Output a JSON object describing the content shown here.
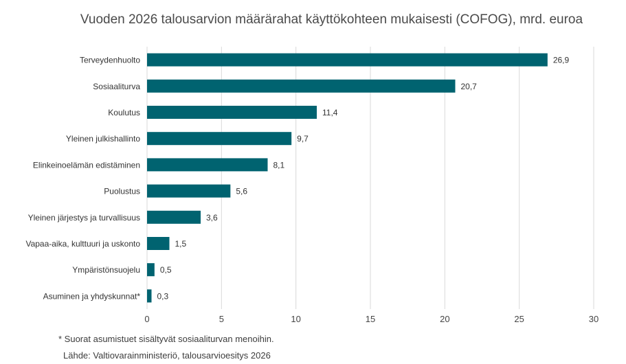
{
  "chart_data": {
    "type": "bar",
    "orientation": "horizontal",
    "title": "Vuoden 2026 talousarvion määrärahat käyttökohteen mukaisesti (COFOG), mrd. euroa",
    "categories": [
      "Terveydenhuolto",
      "Sosiaaliturva",
      "Koulutus",
      "Yleinen julkishallinto",
      "Elinkeinoelämän edistäminen",
      "Puolustus",
      "Yleinen järjestys ja turvallisuus",
      "Vapaa-aika, kulttuuri ja uskonto",
      "Ympäristönsuojelu",
      "Asuminen ja yhdyskunnat*"
    ],
    "values": [
      26.9,
      20.7,
      11.4,
      9.7,
      8.1,
      5.6,
      3.6,
      1.5,
      0.5,
      0.3
    ],
    "value_labels": [
      "26,9",
      "20,7",
      "11,4",
      "9,7",
      "8,1",
      "5,6",
      "3,6",
      "1,5",
      "0,5",
      "0,3"
    ],
    "xlim": [
      0,
      30
    ],
    "xticks": [
      0,
      5,
      10,
      15,
      20,
      25,
      30
    ],
    "grid": "vertical",
    "bar_color": "#006370",
    "grid_color": "#d9d9d9"
  },
  "footnote": "* Suorat asumistuet sisältyvät sosiaaliturvan menoihin.",
  "source": "Lähde: Valtiovarainministeriö, talousarvioesitys 2026"
}
